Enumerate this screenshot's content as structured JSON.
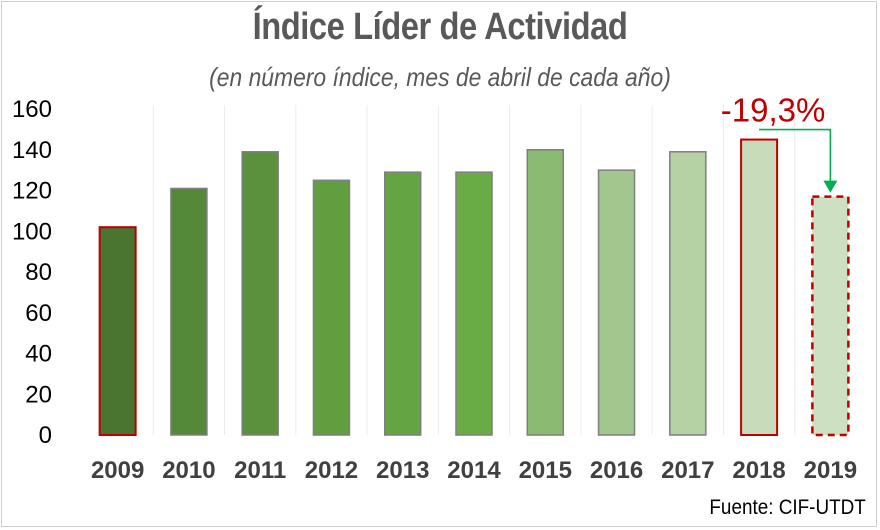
{
  "title": "Índice Líder de Actividad",
  "subtitle": "(en número índice, mes de abril de cada año)",
  "source": "Fuente: CIF-UTDT",
  "colors": {
    "highlight_border": "#c00000",
    "arrow": "#00b050",
    "axis_text": "#000000",
    "title_text": "#595959"
  },
  "chart_data": {
    "type": "bar",
    "title": "Índice Líder de Actividad",
    "subtitle": "(en número índice, mes de abril de cada año)",
    "xlabel": "",
    "ylabel": "",
    "ylim": [
      0,
      160
    ],
    "yticks": [
      0,
      20,
      40,
      60,
      80,
      100,
      120,
      140,
      160
    ],
    "grid": "vertical",
    "legend": "none",
    "categories": [
      "2009",
      "2010",
      "2011",
      "2012",
      "2013",
      "2014",
      "2015",
      "2016",
      "2017",
      "2018",
      "2019"
    ],
    "values": [
      102,
      121,
      139,
      125,
      129,
      129,
      140,
      130,
      139,
      145,
      117
    ],
    "bar_colors": [
      "#4a7530",
      "#55893a",
      "#5b913c",
      "#619e3f",
      "#65a443",
      "#69ac46",
      "#8bbb73",
      "#a1c68e",
      "#b5d2a5",
      "#c8dcbc",
      "#cde0c2"
    ],
    "highlighted": [
      "2009",
      "2018"
    ],
    "dashed": [
      "2019"
    ],
    "annotation": {
      "text": "-19,3%",
      "from": "2018",
      "to": "2019"
    }
  }
}
